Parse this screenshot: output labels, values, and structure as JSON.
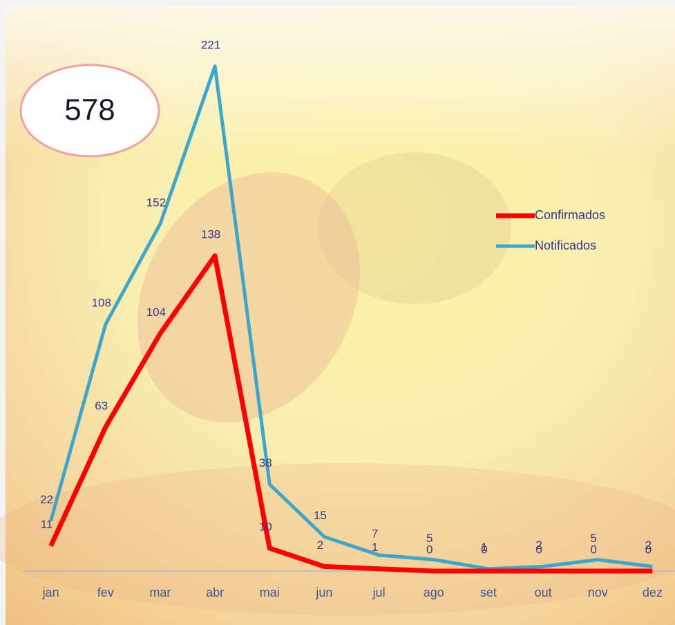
{
  "chart_data": {
    "type": "line",
    "annotation": "578",
    "categories": [
      "jan",
      "fev",
      "mar",
      "abr",
      "mai",
      "jun",
      "jul",
      "ago",
      "set",
      "out",
      "nov",
      "dez"
    ],
    "series": [
      {
        "name": "Notificados",
        "color": "#3ea6cb",
        "values": [
          22,
          108,
          152,
          221,
          38,
          15,
          7,
          5,
          1,
          2,
          5,
          2
        ]
      },
      {
        "name": "Confirmados",
        "color": "#ff0000",
        "values": [
          11,
          63,
          104,
          138,
          10,
          2,
          1,
          0,
          0,
          0,
          0,
          0
        ]
      }
    ],
    "ylim": [
      0,
      250
    ],
    "legend": "right",
    "grid": false
  }
}
